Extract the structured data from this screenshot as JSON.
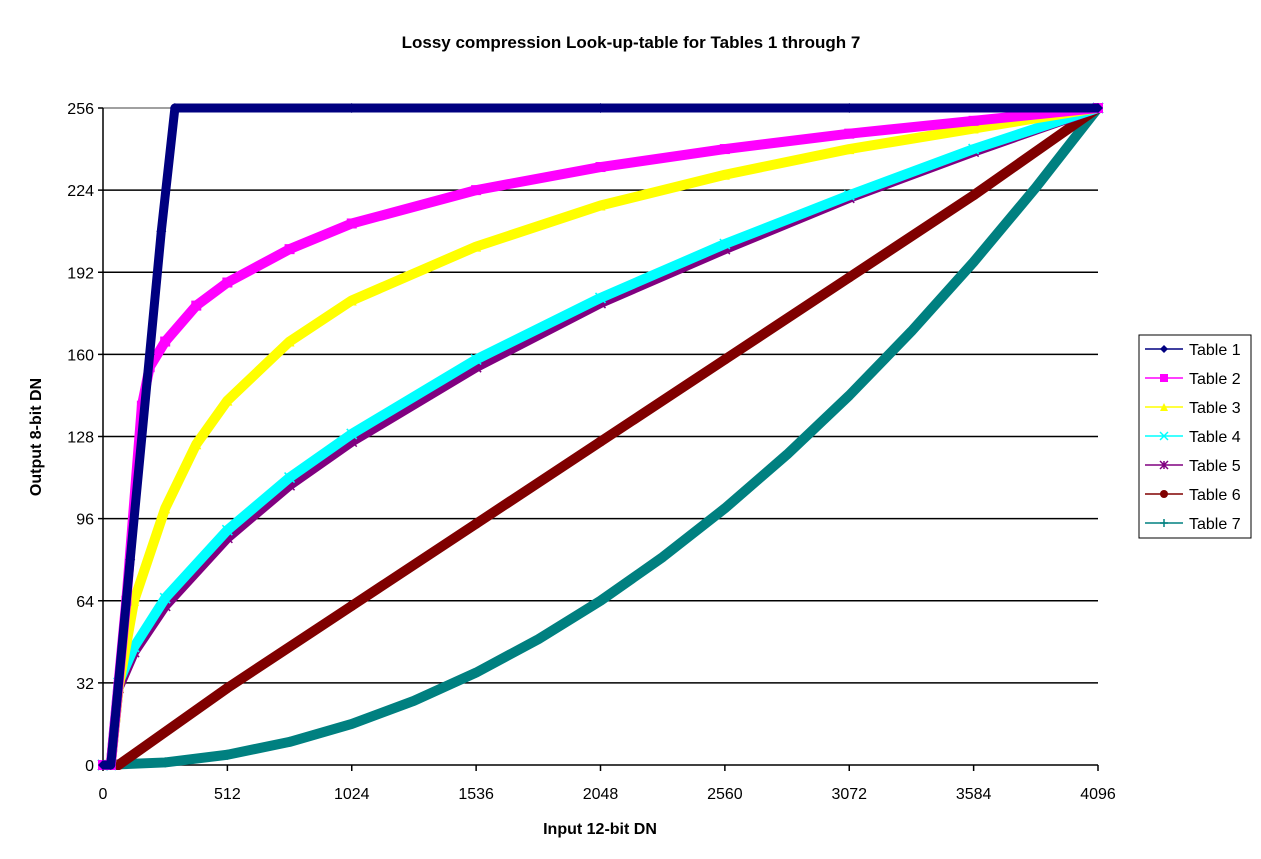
{
  "chart_data": {
    "type": "line",
    "title": "Lossy compression Look-up-table for Tables 1 through 7",
    "xlabel": "Input 12-bit DN",
    "ylabel": "Output 8-bit DN",
    "xlim": [
      0,
      4096
    ],
    "ylim": [
      0,
      256
    ],
    "xticks": [
      0,
      512,
      1024,
      1536,
      2048,
      2560,
      3072,
      3584,
      4096
    ],
    "yticks": [
      0,
      32,
      64,
      96,
      128,
      160,
      192,
      224,
      256
    ],
    "grid": "horizontal",
    "legend": "right",
    "series": [
      {
        "name": "Table 1",
        "color": "#000080",
        "marker": "diamond",
        "x": [
          0,
          32,
          112,
          192,
          240,
          296,
          1024,
          2048,
          3072,
          4096
        ],
        "y": [
          0,
          0,
          80,
          160,
          208,
          256,
          256,
          256,
          256,
          256
        ]
      },
      {
        "name": "Table 2",
        "color": "#ff00ff",
        "marker": "square",
        "x": [
          0,
          32,
          96,
          160,
          192,
          256,
          384,
          512,
          768,
          1024,
          1536,
          2048,
          2560,
          3072,
          3584,
          4096
        ],
        "y": [
          0,
          0,
          64,
          140,
          155,
          165,
          179,
          188,
          201,
          211,
          224,
          233,
          240,
          246,
          251,
          256
        ]
      },
      {
        "name": "Table 3",
        "color": "#ffff00",
        "marker": "triangle",
        "x": [
          0,
          32,
          64,
          128,
          256,
          384,
          512,
          768,
          1024,
          1536,
          2048,
          2560,
          3072,
          3584,
          4096
        ],
        "y": [
          0,
          0,
          30,
          64,
          100,
          125,
          142,
          165,
          181,
          202,
          218,
          230,
          240,
          248,
          256
        ]
      },
      {
        "name": "Table 4",
        "color": "#00ffff",
        "marker": "x",
        "x": [
          0,
          32,
          64,
          128,
          256,
          512,
          768,
          1024,
          1536,
          2048,
          2560,
          3072,
          3584,
          4096
        ],
        "y": [
          0,
          0,
          32,
          46,
          65,
          91.5,
          112,
          129,
          158,
          182,
          203,
          222,
          240,
          256
        ]
      },
      {
        "name": "Table 5",
        "color": "#800080",
        "marker": "star",
        "x": [
          0,
          32,
          64,
          128,
          256,
          512,
          768,
          1024,
          1536,
          2048,
          2560,
          3072,
          3584,
          4096
        ],
        "y": [
          0,
          0,
          30,
          44,
          62,
          88.5,
          109,
          126,
          155,
          180,
          201,
          221,
          239,
          256
        ]
      },
      {
        "name": "Table 6",
        "color": "#800000",
        "marker": "circle",
        "x": [
          0,
          64,
          512,
          1024,
          1536,
          2048,
          2560,
          3072,
          3584,
          4096
        ],
        "y": [
          0,
          0,
          30,
          62,
          94,
          126,
          158,
          190,
          222,
          256
        ]
      },
      {
        "name": "Table 7",
        "color": "#008080",
        "marker": "plus",
        "x": [
          0,
          256,
          512,
          768,
          1024,
          1280,
          1536,
          1792,
          2048,
          2304,
          2560,
          2816,
          3072,
          3328,
          3584,
          3840,
          4096
        ],
        "y": [
          0,
          1,
          4,
          9,
          16,
          25,
          36,
          49,
          64,
          81,
          100,
          121,
          144,
          169,
          196,
          225,
          256
        ]
      }
    ]
  }
}
